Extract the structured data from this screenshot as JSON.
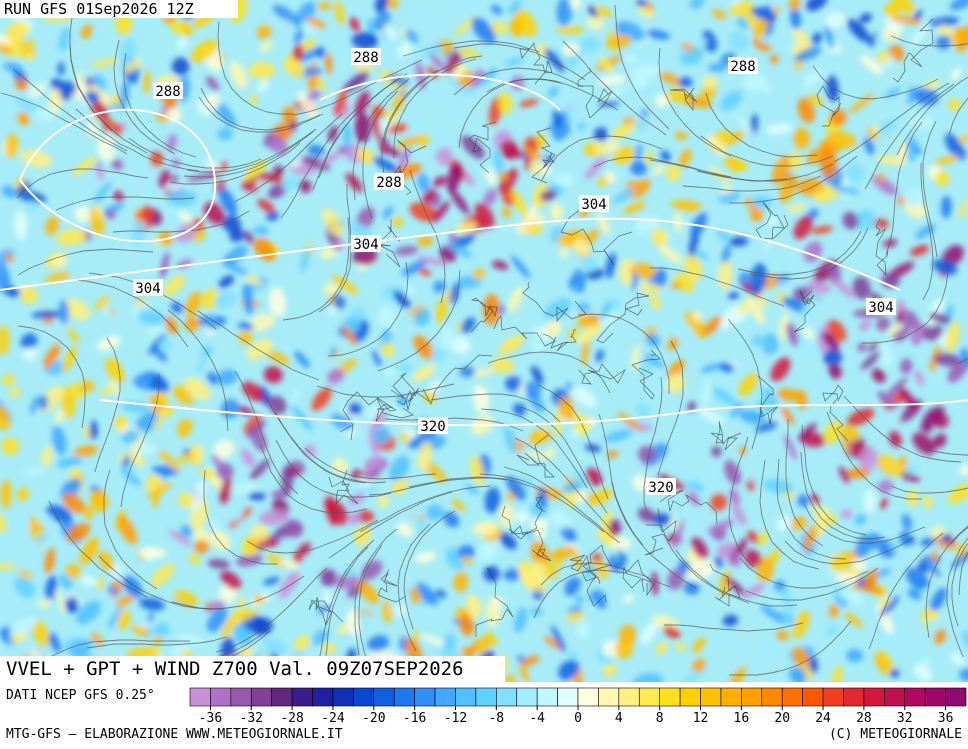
{
  "header": {
    "run": "RUN GFS 01Sep2026 12Z"
  },
  "map": {
    "contour_labels": [
      288,
      288,
      288,
      288,
      304,
      304,
      304,
      304,
      320,
      320
    ]
  },
  "footer": {
    "title": "VVEL + GPT + WIND Z700 Val. 09Z07SEP2026",
    "source": "DATI NCEP GFS 0.25°",
    "credit_left": "MTG-GFS — ELABORAZIONE WWW.METEOGIORNALE.IT",
    "credit_right": "(C) METEOGIORNALE"
  },
  "colorbar": {
    "range": [
      -38,
      38
    ],
    "ticks": [
      -36,
      -32,
      -28,
      -24,
      -20,
      -16,
      -12,
      -8,
      -4,
      0,
      4,
      8,
      12,
      16,
      20,
      24,
      28,
      32,
      36
    ],
    "colors": [
      "#c890d8",
      "#b070c8",
      "#9858b0",
      "#804098",
      "#602880",
      "#3c1c8c",
      "#2020a0",
      "#1030b8",
      "#0848d0",
      "#1060e0",
      "#2078f0",
      "#3090f8",
      "#40a8ff",
      "#50c0ff",
      "#60d0ff",
      "#80e0ff",
      "#a0eeff",
      "#c0f8ff",
      "#e0ffff",
      "#ffffe0",
      "#fff8b0",
      "#fff080",
      "#ffe850",
      "#ffe020",
      "#ffd000",
      "#ffc000",
      "#ffb000",
      "#ffa000",
      "#ff8800",
      "#ff7000",
      "#ff5800",
      "#f04020",
      "#e02830",
      "#d01840",
      "#c01050",
      "#b00860",
      "#a00868",
      "#900870"
    ]
  }
}
